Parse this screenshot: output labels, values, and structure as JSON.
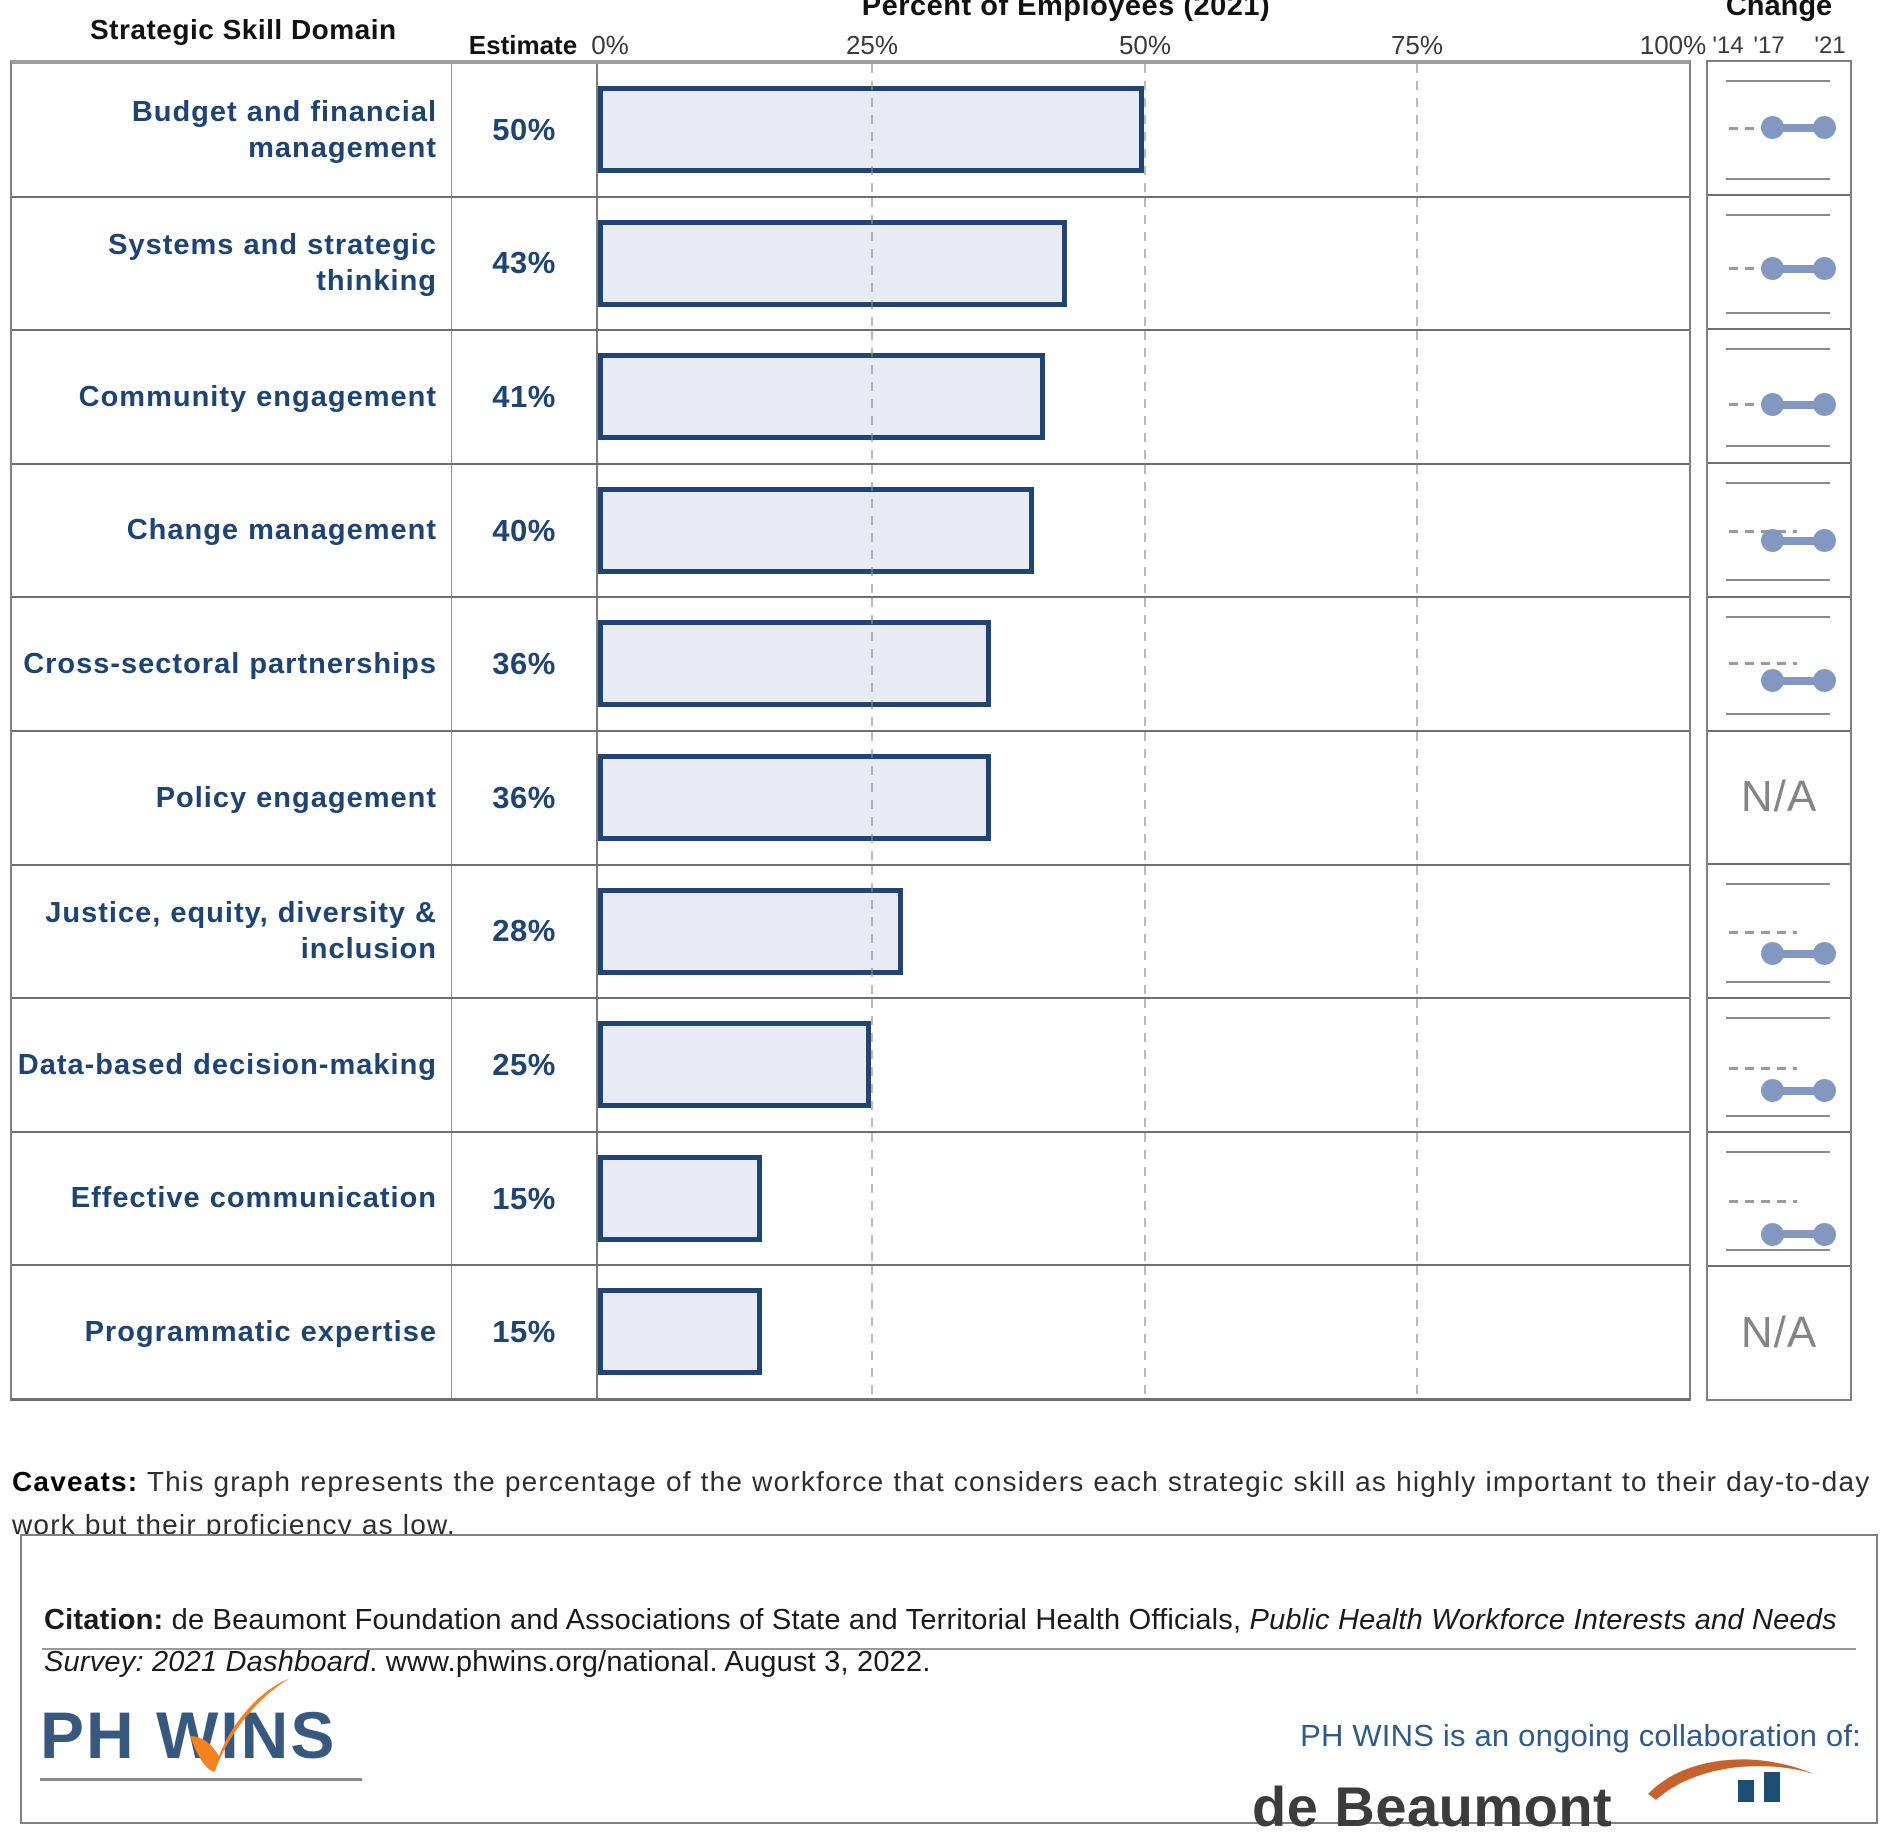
{
  "header": {
    "skill_domain_label": "Strategic Skill Domain",
    "estimate_label": "Estimate",
    "axis_title": "Percent of Employees (2021)",
    "change_label": "Change",
    "axis_ticks": [
      "0%",
      "25%",
      "50%",
      "75%",
      "100%"
    ],
    "change_years": [
      "'14",
      "'17",
      "'21"
    ],
    "na_label": "N/A"
  },
  "chart_data": {
    "type": "bar",
    "orientation": "horizontal",
    "title": "Percent of Employees (2021)",
    "xlabel": "Percent of Employees (2021)",
    "ylabel": "Strategic Skill Domain",
    "xlim": [
      0,
      100
    ],
    "x_ticks_percent": [
      0,
      25,
      50,
      75,
      100
    ],
    "grid": "dashed-vertical",
    "bar_fill": "#e8ebf4",
    "bar_border": "#1e4575",
    "categories": [
      "Budget and financial management",
      "Systems and strategic thinking",
      "Community engagement",
      "Change management",
      "Cross-sectoral partnerships",
      "Policy engagement",
      "Justice, equity, diversity & inclusion",
      "Data-based decision-making",
      "Effective communication",
      "Programmatic expertise"
    ],
    "values": [
      50,
      43,
      41,
      40,
      36,
      36,
      28,
      25,
      15,
      15
    ],
    "estimate_labels": [
      "50%",
      "43%",
      "41%",
      "40%",
      "36%",
      "36%",
      "28%",
      "25%",
      "15%",
      "15%"
    ],
    "change_column": {
      "years": [
        "'14",
        "'17",
        "'21"
      ],
      "note": "mini dumbbell plots show '17 to '21 change; dashed segment marks '14 reference; N/A where no trend data",
      "cells": [
        {
          "type": "dumbbell"
        },
        {
          "type": "dumbbell"
        },
        {
          "type": "dumbbell"
        },
        {
          "type": "dumbbell"
        },
        {
          "type": "dumbbell"
        },
        {
          "type": "na"
        },
        {
          "type": "dumbbell"
        },
        {
          "type": "dumbbell"
        },
        {
          "type": "dumbbell"
        },
        {
          "type": "na"
        }
      ]
    }
  },
  "rows": [
    {
      "label": "Budget and financial management",
      "estimate": "50%",
      "value": 50,
      "change": {
        "type": "dumbbell",
        "dash_y": 0.49,
        "dot_y": 0.49
      }
    },
    {
      "label": "Systems and strategic thinking",
      "estimate": "43%",
      "value": 43,
      "change": {
        "type": "dumbbell",
        "dash_y": 0.54,
        "dot_y": 0.545
      }
    },
    {
      "label": "Community engagement",
      "estimate": "41%",
      "value": 41,
      "change": {
        "type": "dumbbell",
        "dash_y": 0.555,
        "dot_y": 0.56
      }
    },
    {
      "label": "Change management",
      "estimate": "40%",
      "value": 40,
      "change": {
        "type": "dumbbell",
        "dash_y": 0.5,
        "dot_y": 0.575
      }
    },
    {
      "label": "Cross-sectoral partnerships",
      "estimate": "36%",
      "value": 36,
      "change": {
        "type": "dumbbell",
        "dash_y": 0.49,
        "dot_y": 0.62
      }
    },
    {
      "label": "Policy engagement",
      "estimate": "36%",
      "value": 36,
      "change": {
        "type": "na"
      }
    },
    {
      "label": "Justice, equity, diversity & inclusion",
      "estimate": "28%",
      "value": 28,
      "change": {
        "type": "dumbbell",
        "dash_y": 0.5,
        "dot_y": 0.66
      }
    },
    {
      "label": "Data-based decision-making",
      "estimate": "25%",
      "value": 25,
      "change": {
        "type": "dumbbell",
        "dash_y": 0.51,
        "dot_y": 0.685
      }
    },
    {
      "label": "Effective communication",
      "estimate": "15%",
      "value": 15,
      "change": {
        "type": "dumbbell",
        "dash_y": 0.51,
        "dot_y": 0.755
      }
    },
    {
      "label": "Programmatic expertise",
      "estimate": "15%",
      "value": 15,
      "change": {
        "type": "na"
      }
    }
  ],
  "caveats": {
    "heading": "Caveats:",
    "text": " This graph represents the percentage of the workforce that considers each strategic skill as highly important to their day-to-day work but their proficiency as low."
  },
  "citation": {
    "heading": "Citation:",
    "text_before_italic": " de Beaumont Foundation and Associations of State and Territorial Health Officials, ",
    "italic": "Public Health Workforce Interests and Needs Survey: 2021 Dashboard",
    "text_after_italic": ". www.phwins.org/national. August 3, 2022."
  },
  "footer": {
    "phwins_logo_text": "PH WINS",
    "collaboration_text": "PH WINS is an ongoing collaboration of:",
    "debeaumont_text": "de Beaumont"
  },
  "colors": {
    "label_navy": "#1d4477",
    "bar_fill": "#e8ebf4",
    "bar_border": "#1e4575",
    "dumbbell": "#8398c1",
    "na_gray": "#848484",
    "collab_blue": "#2d5b8e",
    "phwins_navy": "#38597f",
    "phwins_orange": "#f5821f",
    "astho_orange": "#c8622c",
    "astho_blue": "#1e4e72"
  }
}
